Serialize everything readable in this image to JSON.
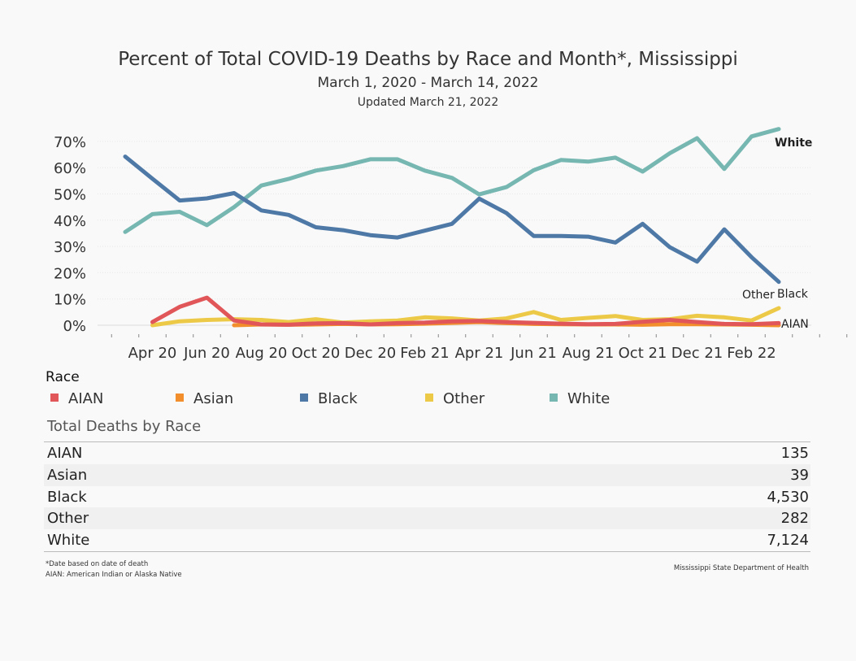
{
  "header": {
    "title": "Percent of Total COVID-19 Deaths by Race and Month*, Mississippi",
    "subtitle": "March 1, 2020 -  March 14, 2022",
    "updated": "Updated March 21, 2022"
  },
  "chart_data": {
    "type": "line",
    "x": [
      "Mar 20",
      "Apr 20",
      "May 20",
      "Jun 20",
      "Jul 20",
      "Aug 20",
      "Sep 20",
      "Oct 20",
      "Nov 20",
      "Dec 20",
      "Jan 21",
      "Feb 21",
      "Mar 21",
      "Apr 21",
      "May 21",
      "Jun 21",
      "Jul 21",
      "Aug 21",
      "Sep 21",
      "Oct 21",
      "Nov 21",
      "Dec 21",
      "Jan 22",
      "Feb 22",
      "Mar 22"
    ],
    "x_tick_labels": [
      "Apr 20",
      "Jun 20",
      "Aug 20",
      "Oct 20",
      "Dec 20",
      "Feb 21",
      "Apr 21",
      "Jun 21",
      "Aug 21",
      "Oct 21",
      "Dec 21",
      "Feb 22"
    ],
    "y_tick_labels": [
      "0%",
      "10%",
      "20%",
      "30%",
      "40%",
      "50%",
      "60%",
      "70%"
    ],
    "ylim": [
      -3,
      77
    ],
    "grid": true,
    "series": [
      {
        "name": "White",
        "color": "#76b7b2",
        "values": [
          35.5,
          42.3,
          43.2,
          38.1,
          45.0,
          53.2,
          55.7,
          58.9,
          60.6,
          63.2,
          63.2,
          58.9,
          56.1,
          49.8,
          52.6,
          59.0,
          62.9,
          62.3,
          63.8,
          58.5,
          65.5,
          71.2,
          59.5,
          71.9,
          74.7
        ]
      },
      {
        "name": "Black",
        "color": "#4e79a7",
        "values": [
          64.2,
          55.8,
          47.5,
          48.3,
          50.3,
          43.7,
          42.0,
          37.3,
          36.2,
          34.3,
          33.4,
          36.0,
          38.6,
          48.2,
          42.7,
          34.0,
          34.0,
          33.7,
          31.5,
          38.6,
          29.7,
          24.2,
          36.5,
          25.9,
          16.5
        ]
      },
      {
        "name": "Other",
        "color": "#edc948",
        "values": [
          null,
          0.0,
          1.5,
          2.0,
          2.3,
          2.0,
          1.2,
          2.3,
          1.0,
          1.5,
          1.8,
          3.0,
          2.6,
          1.8,
          2.6,
          5.0,
          2.0,
          2.8,
          3.5,
          2.0,
          2.3,
          3.6,
          3.0,
          1.8,
          6.5
        ]
      },
      {
        "name": "Asian",
        "color": "#f28e2b",
        "values": [
          null,
          null,
          null,
          null,
          0.0,
          0.3,
          0.2,
          0.3,
          0.5,
          0.3,
          0.4,
          0.6,
          0.9,
          1.2,
          0.8,
          0.5,
          0.4,
          0.3,
          0.3,
          0.2,
          0.4,
          0.4,
          0.3,
          0.2,
          0.0
        ]
      },
      {
        "name": "AIAN",
        "color": "#e15759",
        "values": [
          null,
          1.2,
          7.0,
          10.5,
          1.8,
          0.3,
          0.2,
          0.7,
          0.8,
          0.3,
          0.8,
          1.0,
          1.5,
          1.6,
          1.2,
          0.9,
          0.6,
          0.4,
          0.5,
          1.3,
          2.0,
          1.2,
          0.5,
          0.4,
          0.8
        ]
      }
    ]
  },
  "line_labels": {
    "white": "White",
    "other": "Other",
    "black": "Black",
    "aian": "AIAN"
  },
  "legend": {
    "title": "Race",
    "items": [
      {
        "name": "AIAN",
        "color": "#e15759"
      },
      {
        "name": "Asian",
        "color": "#f28e2b"
      },
      {
        "name": "Black",
        "color": "#4e79a7"
      },
      {
        "name": "Other",
        "color": "#edc948"
      },
      {
        "name": "White",
        "color": "#76b7b2"
      }
    ]
  },
  "totals": {
    "title": "Total Deaths by Race",
    "rows": [
      {
        "race": "AIAN",
        "deaths": "135"
      },
      {
        "race": "Asian",
        "deaths": "39"
      },
      {
        "race": "Black",
        "deaths": "4,530"
      },
      {
        "race": "Other",
        "deaths": "282"
      },
      {
        "race": "White",
        "deaths": "7,124"
      }
    ]
  },
  "footnotes": {
    "line1": "*Date based on date of death",
    "line2": "AIAN: American Indian or Alaska Native",
    "source": "Mississippi State Department of Health"
  }
}
